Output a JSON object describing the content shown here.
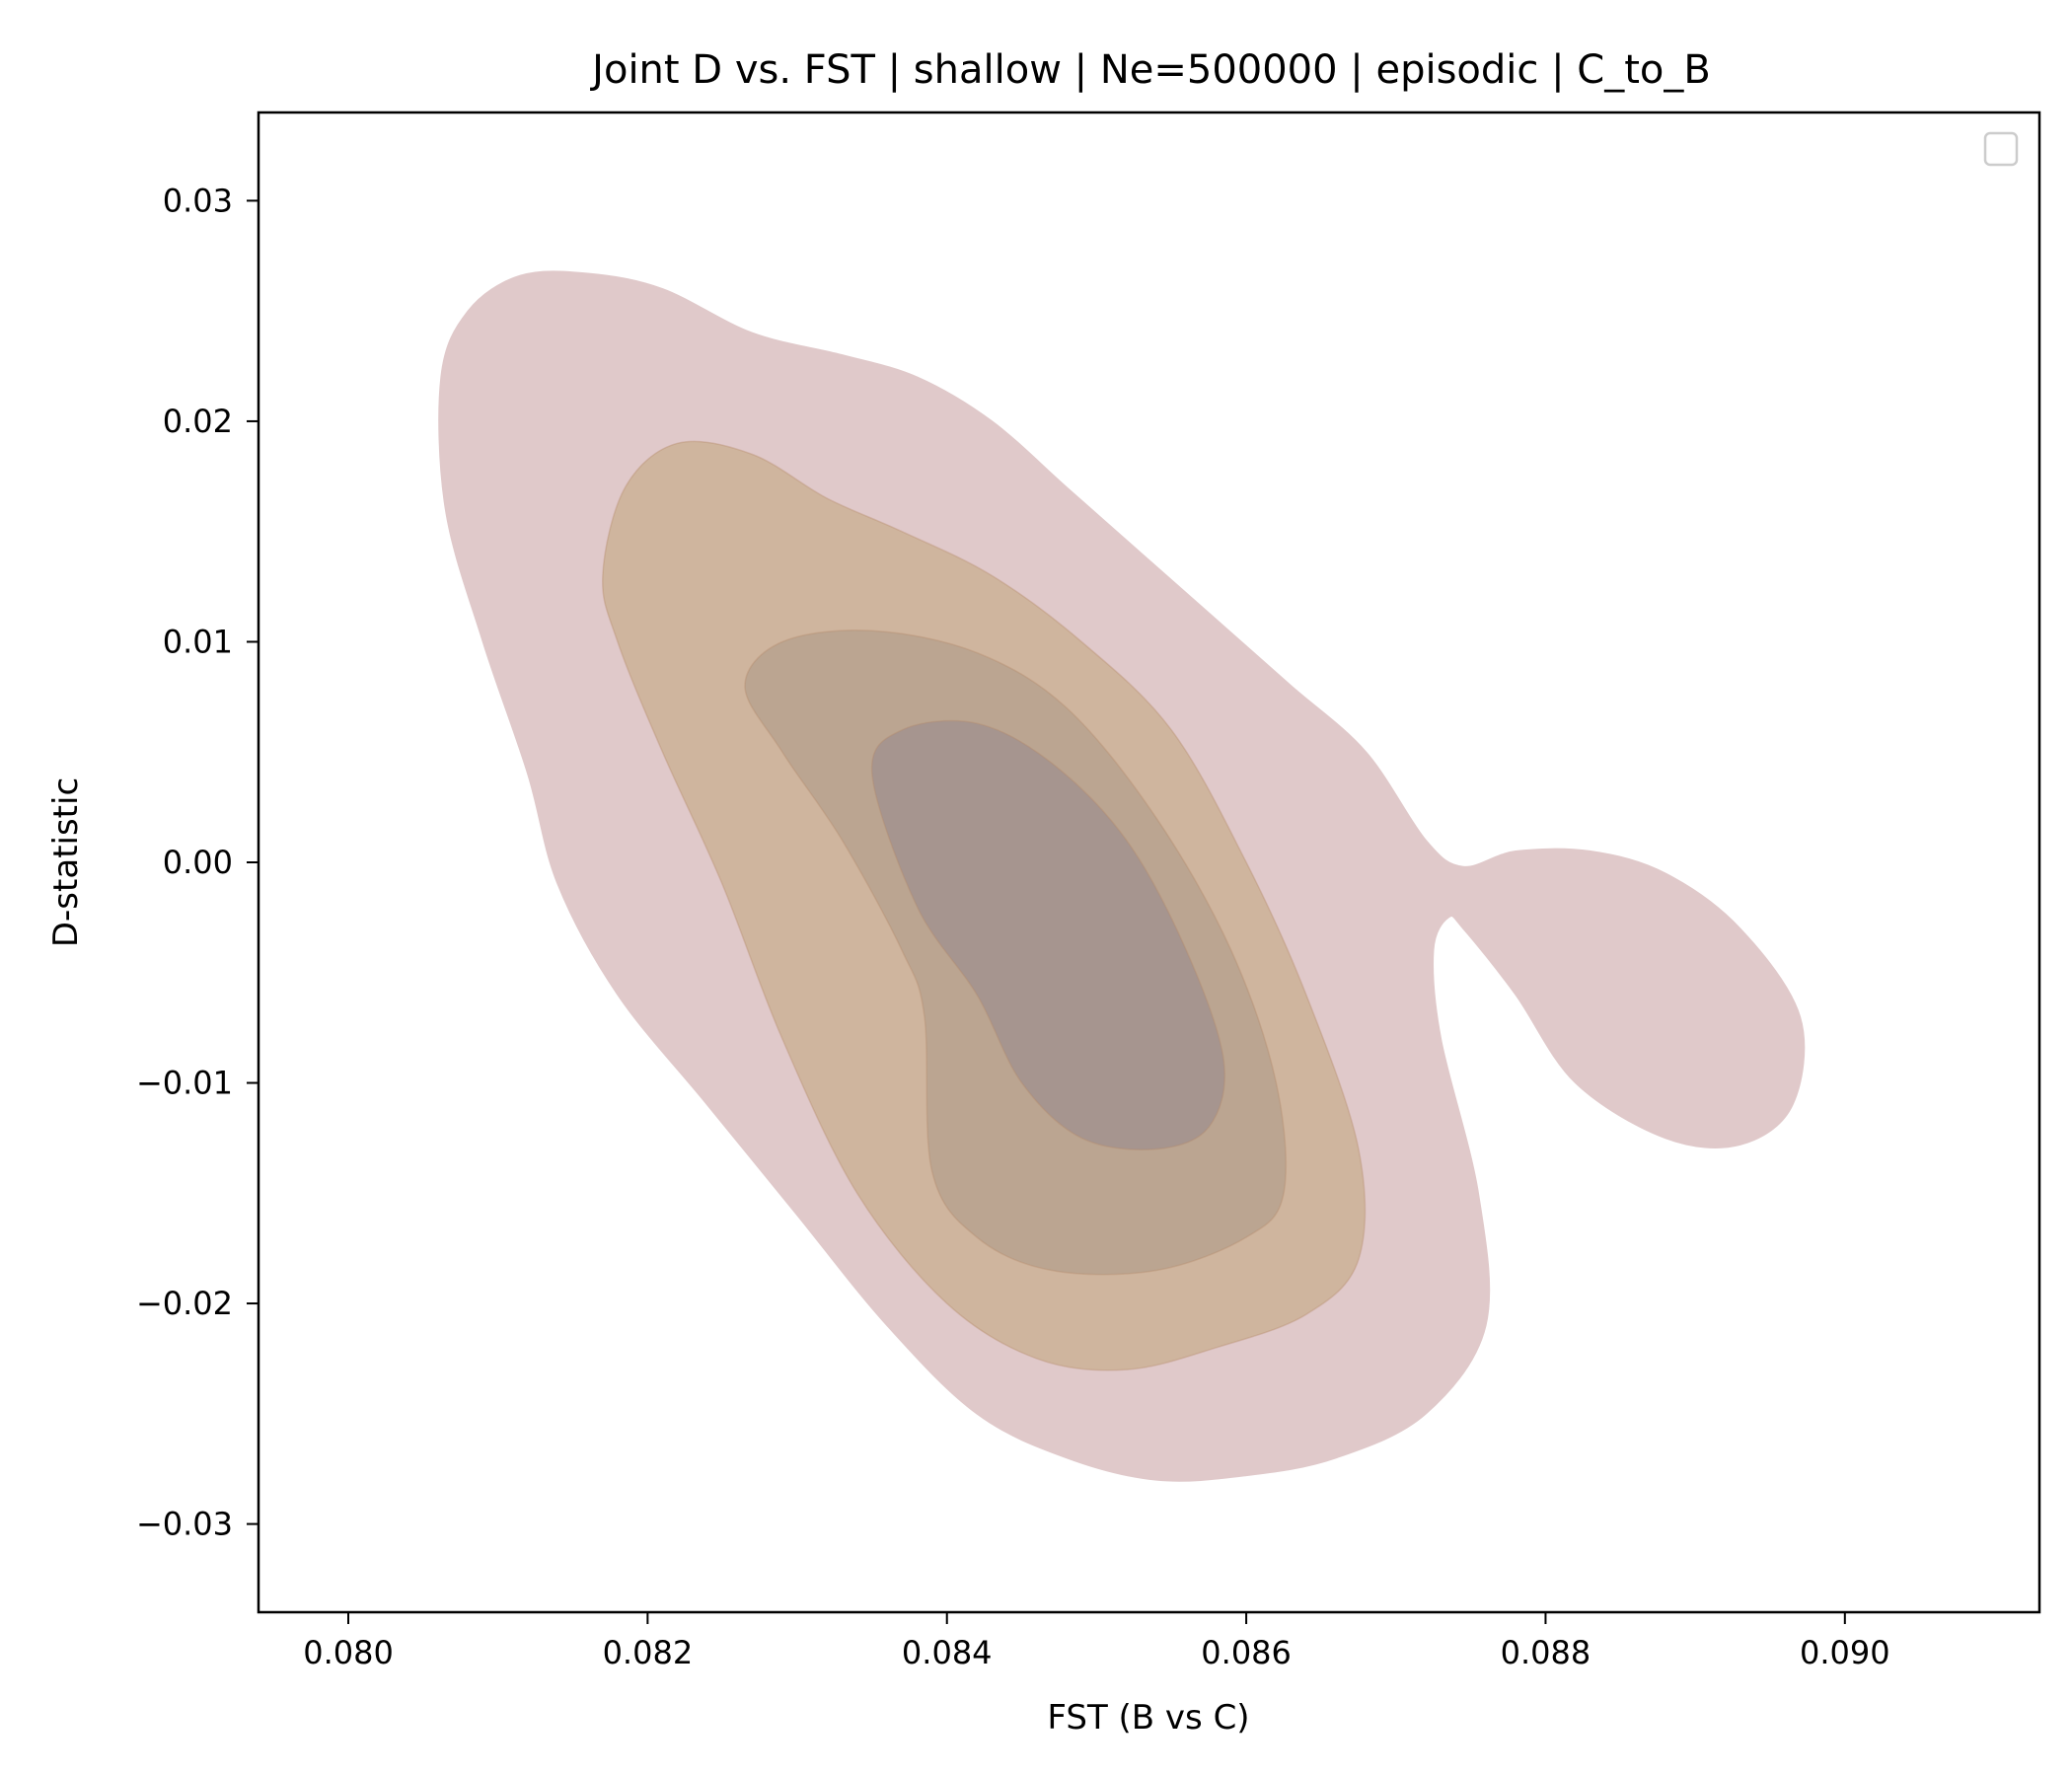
{
  "chart_data": {
    "type": "contour",
    "title": "Joint D vs. FST | shallow | Ne=500000 | episodic | C_to_B",
    "xlabel": "FST (B vs C)",
    "ylabel": "D-statistic",
    "xlim": [
      0.0794,
      0.0913
    ],
    "ylim": [
      -0.034,
      0.034
    ],
    "xticks": [
      0.08,
      0.082,
      0.084,
      0.086,
      0.088,
      0.09
    ],
    "xtick_labels": [
      "0.080",
      "0.082",
      "0.084",
      "0.086",
      "0.088",
      "0.090"
    ],
    "yticks": [
      0.03,
      0.02,
      0.01,
      0.0,
      -0.01,
      -0.02,
      -0.03
    ],
    "ytick_labels": [
      "0.03",
      "0.02",
      "0.01",
      "0.00",
      "−0.01",
      "−0.02",
      "−0.03"
    ],
    "grid": false,
    "legend": {
      "placement": "top-right",
      "entries": []
    },
    "colors": {
      "level_1": "#e0c9ca",
      "level_2": "#cfb59e",
      "level_3": "#bba591",
      "level_4": "#a6958f"
    },
    "levels": [
      {
        "name": "level-1",
        "outline": [
          [
            0.08062,
            0.022
          ],
          [
            0.0808,
            0.025
          ],
          [
            0.08115,
            0.0266
          ],
          [
            0.0816,
            0.0267
          ],
          [
            0.0821,
            0.026
          ],
          [
            0.0827,
            0.024
          ],
          [
            0.0833,
            0.023
          ],
          [
            0.0838,
            0.022
          ],
          [
            0.0843,
            0.02
          ],
          [
            0.0848,
            0.017
          ],
          [
            0.0853,
            0.014
          ],
          [
            0.0858,
            0.011
          ],
          [
            0.0863,
            0.008
          ],
          [
            0.0868,
            0.005
          ],
          [
            0.0872,
            0.001
          ],
          [
            0.08745,
            -0.0002
          ],
          [
            0.0878,
            0.0005
          ],
          [
            0.0883,
            0.0005
          ],
          [
            0.0888,
            -0.0005
          ],
          [
            0.0893,
            -0.003
          ],
          [
            0.0897,
            -0.007
          ],
          [
            0.08965,
            -0.011
          ],
          [
            0.0893,
            -0.0128
          ],
          [
            0.0888,
            -0.0125
          ],
          [
            0.0882,
            -0.01
          ],
          [
            0.0878,
            -0.006
          ],
          [
            0.08745,
            -0.003
          ],
          [
            0.08735,
            -0.0025
          ],
          [
            0.08725,
            -0.004
          ],
          [
            0.0873,
            -0.008
          ],
          [
            0.08755,
            -0.015
          ],
          [
            0.0876,
            -0.021
          ],
          [
            0.0872,
            -0.025
          ],
          [
            0.0866,
            -0.027
          ],
          [
            0.086,
            -0.0278
          ],
          [
            0.0854,
            -0.028
          ],
          [
            0.0848,
            -0.027
          ],
          [
            0.0842,
            -0.025
          ],
          [
            0.0836,
            -0.021
          ],
          [
            0.083,
            -0.016
          ],
          [
            0.0824,
            -0.011
          ],
          [
            0.0818,
            -0.006
          ],
          [
            0.0814,
            -0.001
          ],
          [
            0.0812,
            0.004
          ],
          [
            0.0809,
            0.01
          ],
          [
            0.08065,
            0.016
          ]
        ]
      },
      {
        "name": "level-2",
        "outline": [
          [
            0.0817,
            0.013
          ],
          [
            0.08185,
            0.017
          ],
          [
            0.0822,
            0.019
          ],
          [
            0.0827,
            0.0185
          ],
          [
            0.0832,
            0.0165
          ],
          [
            0.0837,
            0.015
          ],
          [
            0.0843,
            0.013
          ],
          [
            0.0849,
            0.01
          ],
          [
            0.0855,
            0.006
          ],
          [
            0.086,
            0.0
          ],
          [
            0.0864,
            -0.006
          ],
          [
            0.08675,
            -0.013
          ],
          [
            0.08675,
            -0.018
          ],
          [
            0.0864,
            -0.0205
          ],
          [
            0.0858,
            -0.022
          ],
          [
            0.0852,
            -0.023
          ],
          [
            0.0846,
            -0.0225
          ],
          [
            0.084,
            -0.02
          ],
          [
            0.0834,
            -0.015
          ],
          [
            0.0829,
            -0.008
          ],
          [
            0.0825,
            -0.001
          ],
          [
            0.0821,
            0.005
          ],
          [
            0.0818,
            0.01
          ]
        ]
      },
      {
        "name": "level-3",
        "outline": [
          [
            0.08265,
            0.008
          ],
          [
            0.0829,
            0.01
          ],
          [
            0.0835,
            0.0105
          ],
          [
            0.0842,
            0.0095
          ],
          [
            0.0848,
            0.007
          ],
          [
            0.0854,
            0.002
          ],
          [
            0.0859,
            -0.004
          ],
          [
            0.0862,
            -0.01
          ],
          [
            0.08625,
            -0.015
          ],
          [
            0.086,
            -0.017
          ],
          [
            0.0854,
            -0.0185
          ],
          [
            0.0847,
            -0.0185
          ],
          [
            0.0842,
            -0.017
          ],
          [
            0.0839,
            -0.014
          ],
          [
            0.08385,
            -0.007
          ],
          [
            0.0837,
            -0.004
          ],
          [
            0.0833,
            0.001
          ],
          [
            0.0829,
            0.005
          ]
        ]
      },
      {
        "name": "level-4",
        "outline": [
          [
            0.0835,
            0.004
          ],
          [
            0.0837,
            0.006
          ],
          [
            0.0842,
            0.0063
          ],
          [
            0.0847,
            0.0045
          ],
          [
            0.0852,
            0.001
          ],
          [
            0.0856,
            -0.004
          ],
          [
            0.08585,
            -0.009
          ],
          [
            0.08575,
            -0.012
          ],
          [
            0.0854,
            -0.013
          ],
          [
            0.0849,
            -0.0125
          ],
          [
            0.0845,
            -0.01
          ],
          [
            0.0842,
            -0.006
          ],
          [
            0.0838,
            -0.002
          ]
        ]
      }
    ]
  }
}
